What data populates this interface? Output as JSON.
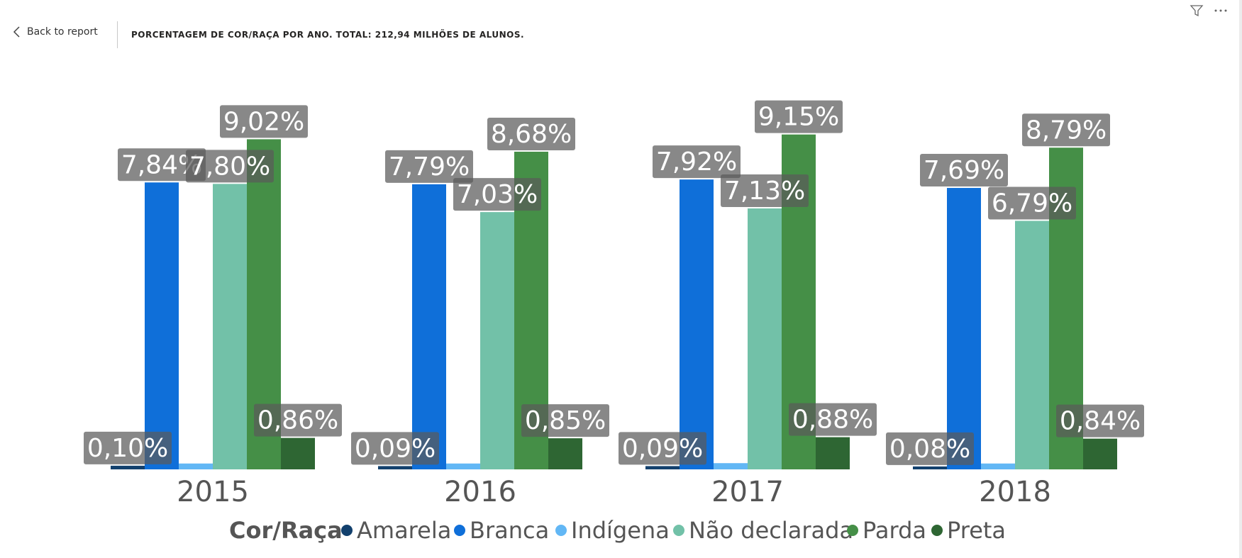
{
  "header": {
    "back_label": "Back to report",
    "title": "PORCENTAGEM DE COR/RAÇA POR ANO. TOTAL: 212,94 MILHÕES DE ALUNOS."
  },
  "icons": {
    "back": "chevron-left-icon",
    "filter": "filter-icon",
    "more": "more-options-icon"
  },
  "chart_data": {
    "type": "bar",
    "title": "PORCENTAGEM DE COR/RAÇA POR ANO. TOTAL: 212,94 MILHÕES DE ALUNOS.",
    "legend_title": "Cor/Raça",
    "legend_position": "bottom",
    "grid": false,
    "categories": [
      "2015",
      "2016",
      "2017",
      "2018"
    ],
    "ylim": [
      0,
      10.5
    ],
    "series": [
      {
        "name": "Amarela",
        "color": "#12406d",
        "values": [
          0.1,
          0.09,
          0.09,
          0.08
        ],
        "labels": [
          "0,10%",
          "0,09%",
          "0,09%",
          "0,08%"
        ],
        "show_labels": true
      },
      {
        "name": "Branca",
        "color": "#0f6fd9",
        "values": [
          7.84,
          7.79,
          7.92,
          7.69
        ],
        "labels": [
          "7,84%",
          "7,79%",
          "7,92%",
          "7,69%"
        ],
        "show_labels": true
      },
      {
        "name": "Indígena",
        "color": "#62b7f5",
        "values": [
          0.16,
          0.16,
          0.17,
          0.16
        ],
        "labels": [
          "",
          "",
          "",
          ""
        ],
        "show_labels": false
      },
      {
        "name": "Não declarada",
        "color": "#72c1a8",
        "values": [
          7.8,
          7.03,
          7.13,
          6.79
        ],
        "labels": [
          "7,80%",
          "7,03%",
          "7,13%",
          "6,79%"
        ],
        "show_labels": true
      },
      {
        "name": "Parda",
        "color": "#458f47",
        "values": [
          9.02,
          8.68,
          9.15,
          8.79
        ],
        "labels": [
          "9,02%",
          "8,68%",
          "9,15%",
          "8,79%"
        ],
        "show_labels": true
      },
      {
        "name": "Preta",
        "color": "#2e6633",
        "values": [
          0.86,
          0.85,
          0.88,
          0.84
        ],
        "labels": [
          "0,86%",
          "0,85%",
          "0,88%",
          "0,84%"
        ],
        "show_labels": true
      }
    ]
  }
}
